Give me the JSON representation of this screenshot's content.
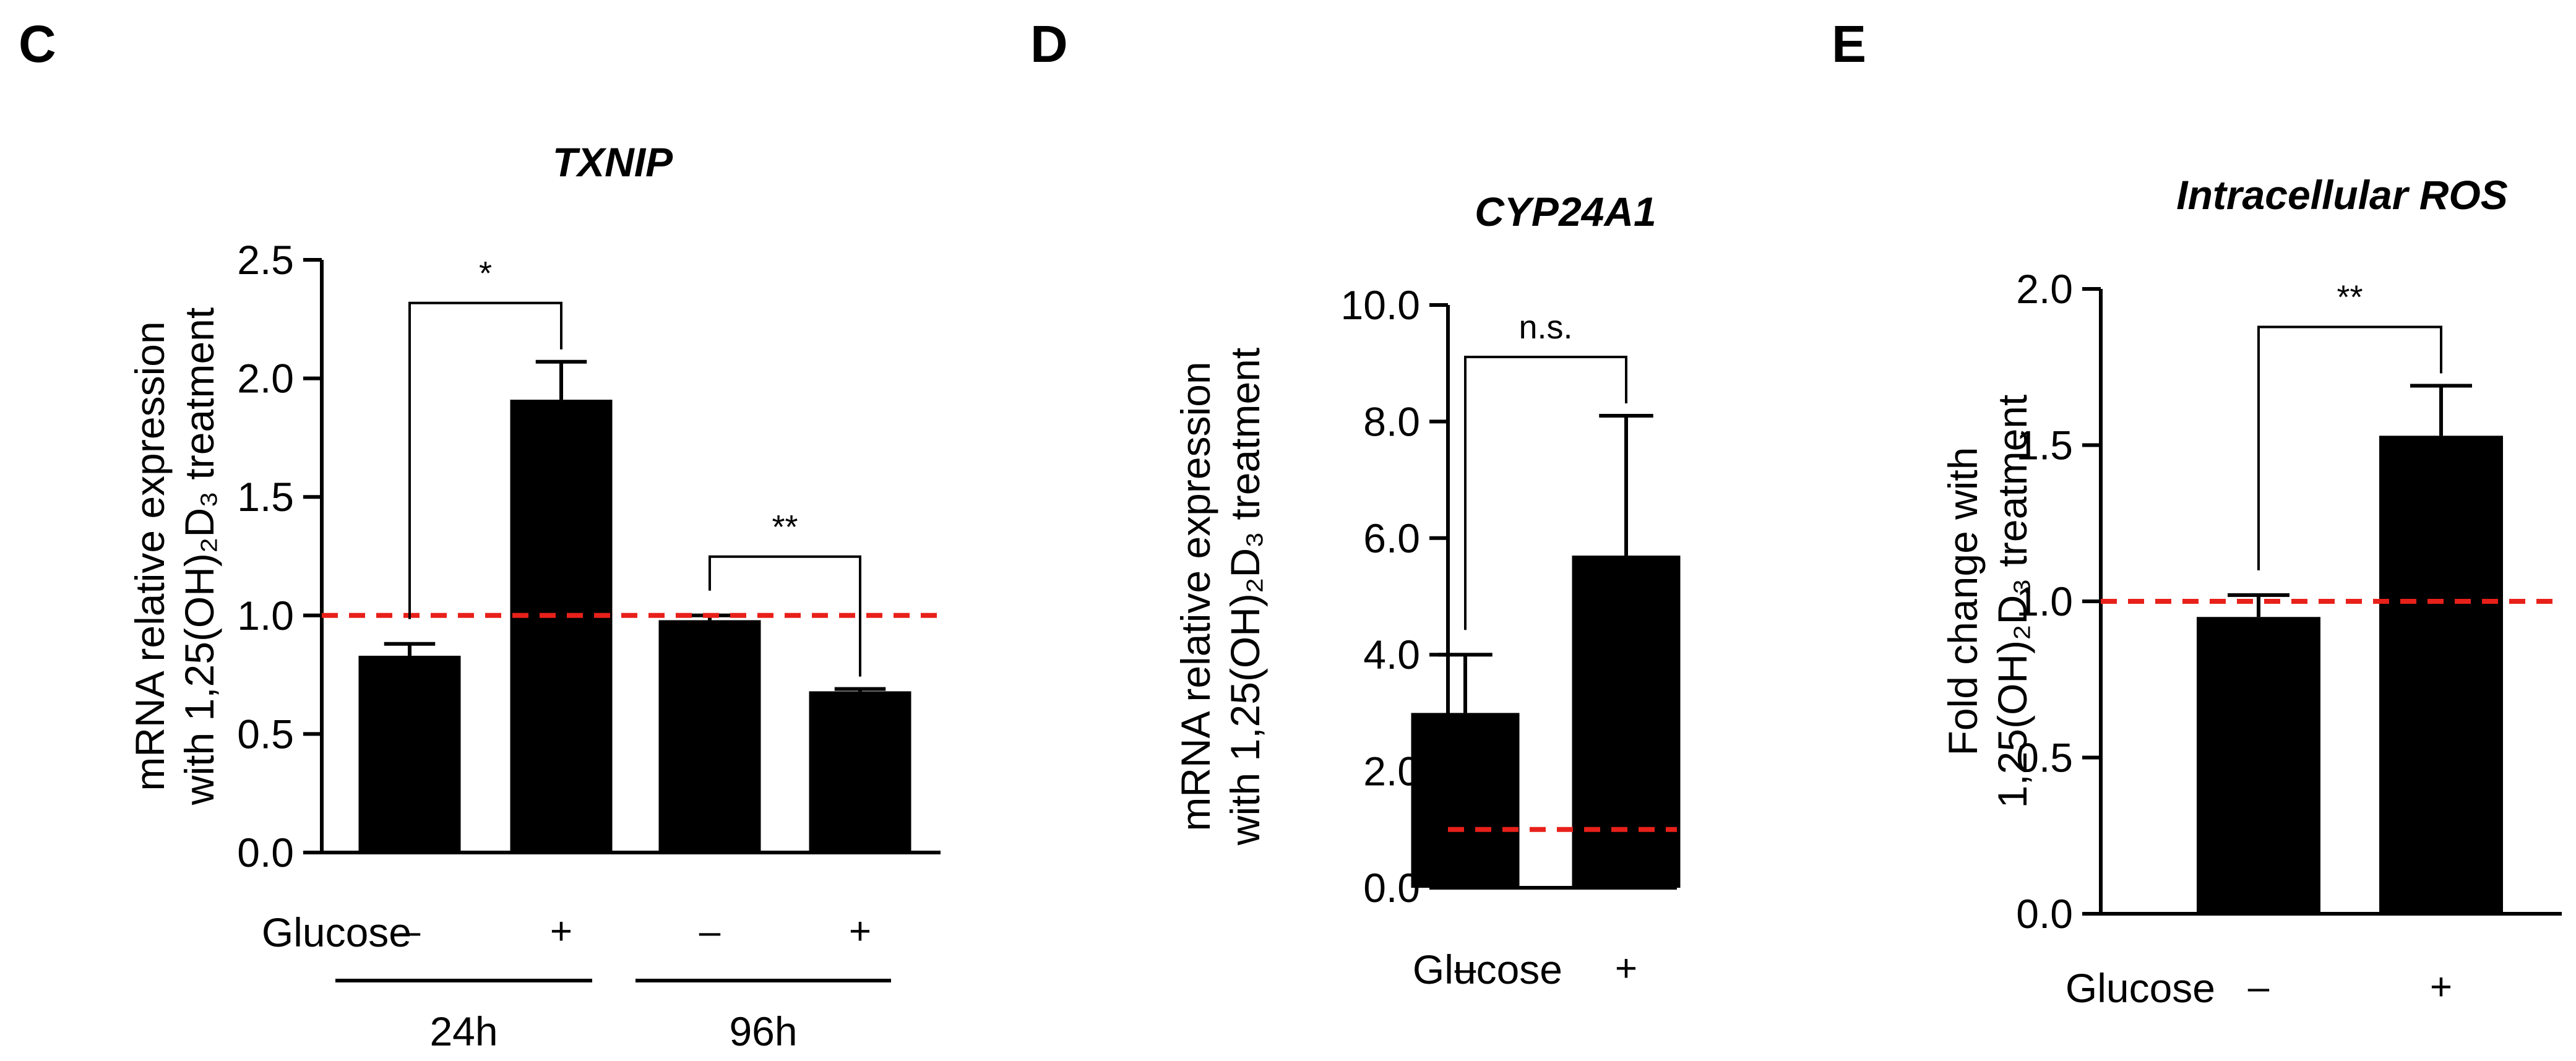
{
  "figure_labels": {
    "C": "C",
    "D": "D",
    "E": "E"
  },
  "chart_data": [
    {
      "panel": "C",
      "type": "bar",
      "title": "TXNIP",
      "ylabel_line1": "mRNA relative expression",
      "ylabel_line2": "with 1,25(OH)₂D₃ treatment",
      "xlabel": "Glucose",
      "ylim": [
        0,
        2.5
      ],
      "yticks": [
        0,
        0.5,
        1.0,
        1.5,
        2.0,
        2.5
      ],
      "ytick_labels": [
        "0.0",
        "0.5",
        "1.0",
        "1.5",
        "2.0",
        "2.5"
      ],
      "categories": [
        "–",
        "+",
        "–",
        "+"
      ],
      "values": [
        0.83,
        1.91,
        0.98,
        0.68
      ],
      "errors": [
        0.05,
        0.16,
        0.02,
        0.01
      ],
      "reference_line": 1.0,
      "reference_color": "#e8201a",
      "bar_color": "#000000",
      "groups": [
        {
          "label": "24h",
          "members": [
            0,
            1
          ]
        },
        {
          "label": "96h",
          "members": [
            2,
            3
          ]
        }
      ],
      "significance": [
        {
          "pair": [
            0,
            1
          ],
          "label": "*"
        },
        {
          "pair": [
            2,
            3
          ],
          "label": "**"
        }
      ]
    },
    {
      "panel": "D",
      "type": "bar",
      "title": "CYP24A1",
      "ylabel_line1": "mRNA relative expression",
      "ylabel_line2": "with 1,25(OH)₂D₃ treatment",
      "xlabel": "Glucose",
      "ylim": [
        0,
        10.0
      ],
      "yticks": [
        0,
        2,
        4,
        6,
        8,
        10
      ],
      "ytick_labels": [
        "0.0",
        "2.0",
        "4.0",
        "6.0",
        "8.0",
        "10.0"
      ],
      "categories": [
        "–",
        "+"
      ],
      "values": [
        3.0,
        5.7
      ],
      "errors": [
        1.0,
        2.4
      ],
      "reference_line": 1.0,
      "reference_color": "#e8201a",
      "bar_color": "#000000",
      "groups": [],
      "significance": [
        {
          "pair": [
            0,
            1
          ],
          "label": "n.s."
        }
      ]
    },
    {
      "panel": "E",
      "type": "bar",
      "title": "Intracellular ROS",
      "ylabel_line1": "Fold change with",
      "ylabel_line2": "1,25(OH)₂D₃ treatment",
      "xlabel": "Glucose",
      "ylim": [
        0,
        2.0
      ],
      "yticks": [
        0,
        0.5,
        1.0,
        1.5,
        2.0
      ],
      "ytick_labels": [
        "0.0",
        "0.5",
        "1.0",
        "1.5",
        "2.0"
      ],
      "categories": [
        "–",
        "+"
      ],
      "values": [
        0.95,
        1.53
      ],
      "errors": [
        0.07,
        0.16
      ],
      "reference_line": 1.0,
      "reference_color": "#e8201a",
      "bar_color": "#000000",
      "groups": [],
      "significance": [
        {
          "pair": [
            0,
            1
          ],
          "label": "**"
        }
      ]
    }
  ]
}
